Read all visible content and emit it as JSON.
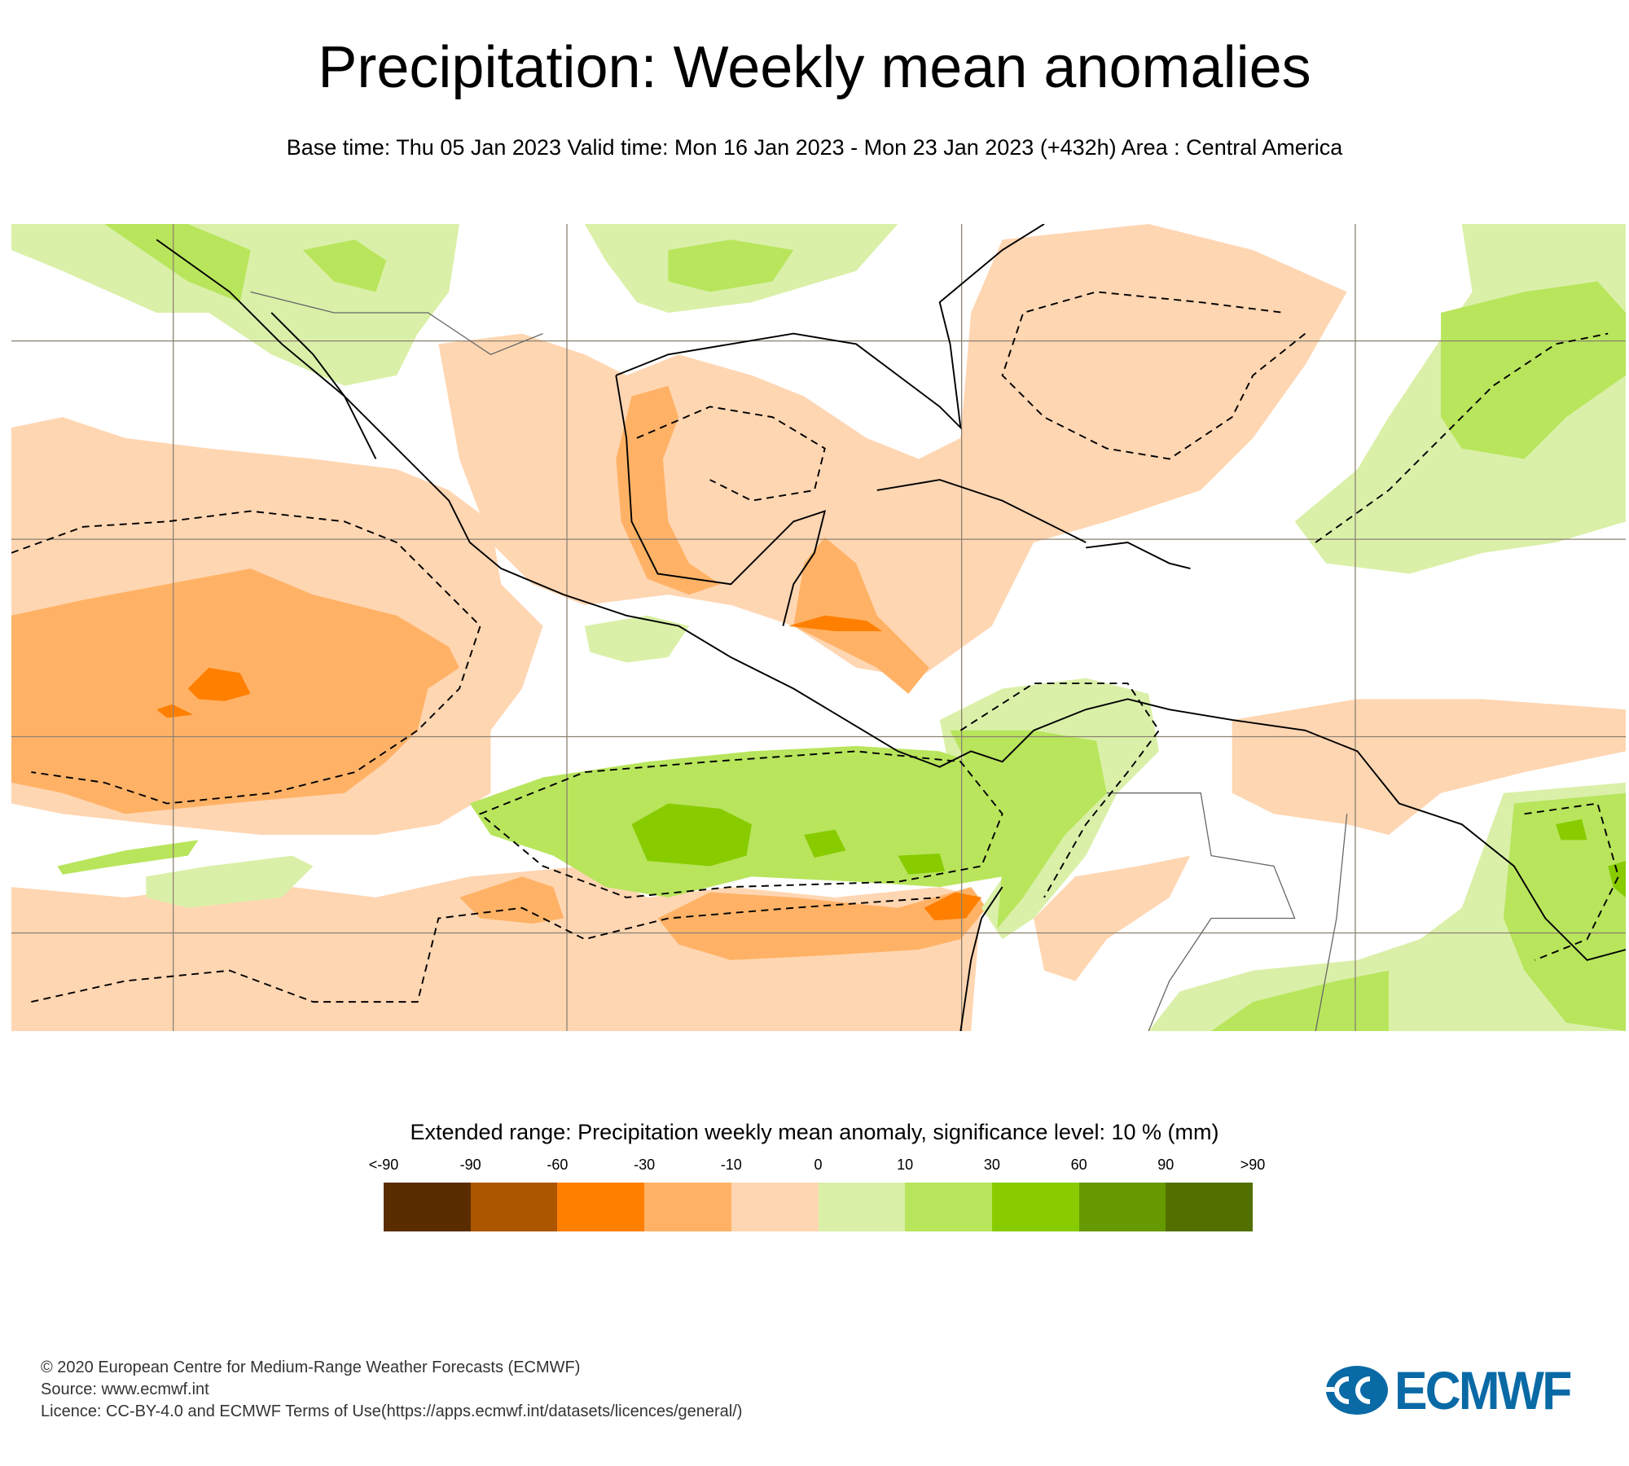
{
  "title": "Precipitation: Weekly mean anomalies",
  "subtitle": "Base time: Thu 05 Jan 2023 Valid time: Mon 16 Jan 2023 - Mon 23 Jan 2023 (+432h) Area : Central America",
  "legend": {
    "title": "Extended range: Precipitation weekly mean anomaly, significance level: 10 % (mm)",
    "ticks": [
      "<-90",
      "-90",
      "-60",
      "-30",
      "-10",
      "0",
      "10",
      "30",
      "60",
      "90",
      ">90"
    ],
    "colors": [
      "#5a2d00",
      "#ad5600",
      "#ff7f00",
      "#ffb266",
      "#ffd6b2",
      "#daf0a8",
      "#b8e55c",
      "#88cc00",
      "#669900",
      "#527000"
    ]
  },
  "footer": {
    "line1": "© 2020 European Centre for Medium-Range Weather Forecasts (ECMWF)",
    "line2": "Source: www.ecmwf.int",
    "line3": "Licence: CC-BY-4.0 and ECMWF Terms of Use(https://apps.ecmwf.int/datasets/licences/general/)"
  },
  "logo": {
    "text": "ECMWF",
    "color": "#0a6aa6"
  }
}
